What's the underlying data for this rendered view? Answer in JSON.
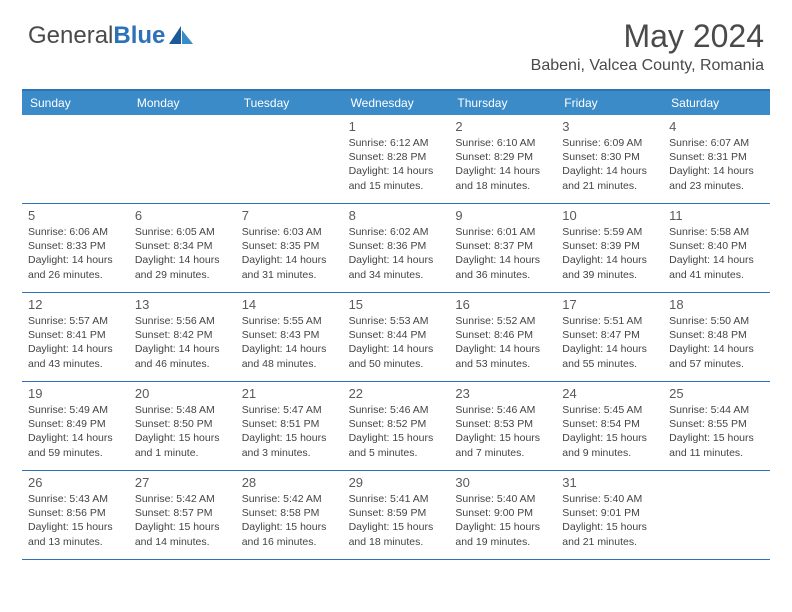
{
  "brand": {
    "text_a": "General",
    "text_b": "Blue",
    "logo_fill_dark": "#1a5a96",
    "logo_fill_light": "#3b8bc9"
  },
  "header": {
    "title": "May 2024",
    "location": "Babeni, Valcea County, Romania"
  },
  "style": {
    "header_bg": "#3b8bc9",
    "header_text": "#ffffff",
    "border_color": "#2d72b8",
    "body_text": "#444444",
    "daynum_color": "#5a5a5a",
    "title_color": "#4a4a4a",
    "title_fontsize": 32,
    "location_fontsize": 16,
    "weekday_fontsize": 12,
    "daynum_fontsize": 13,
    "info_fontsize": 10.5,
    "page_bg": "#ffffff"
  },
  "weekdays": [
    "Sunday",
    "Monday",
    "Tuesday",
    "Wednesday",
    "Thursday",
    "Friday",
    "Saturday"
  ],
  "weeks": [
    [
      {},
      {},
      {},
      {
        "d": "1",
        "sr": "6:12 AM",
        "ss": "8:28 PM",
        "dl": "14 hours and 15 minutes."
      },
      {
        "d": "2",
        "sr": "6:10 AM",
        "ss": "8:29 PM",
        "dl": "14 hours and 18 minutes."
      },
      {
        "d": "3",
        "sr": "6:09 AM",
        "ss": "8:30 PM",
        "dl": "14 hours and 21 minutes."
      },
      {
        "d": "4",
        "sr": "6:07 AM",
        "ss": "8:31 PM",
        "dl": "14 hours and 23 minutes."
      }
    ],
    [
      {
        "d": "5",
        "sr": "6:06 AM",
        "ss": "8:33 PM",
        "dl": "14 hours and 26 minutes."
      },
      {
        "d": "6",
        "sr": "6:05 AM",
        "ss": "8:34 PM",
        "dl": "14 hours and 29 minutes."
      },
      {
        "d": "7",
        "sr": "6:03 AM",
        "ss": "8:35 PM",
        "dl": "14 hours and 31 minutes."
      },
      {
        "d": "8",
        "sr": "6:02 AM",
        "ss": "8:36 PM",
        "dl": "14 hours and 34 minutes."
      },
      {
        "d": "9",
        "sr": "6:01 AM",
        "ss": "8:37 PM",
        "dl": "14 hours and 36 minutes."
      },
      {
        "d": "10",
        "sr": "5:59 AM",
        "ss": "8:39 PM",
        "dl": "14 hours and 39 minutes."
      },
      {
        "d": "11",
        "sr": "5:58 AM",
        "ss": "8:40 PM",
        "dl": "14 hours and 41 minutes."
      }
    ],
    [
      {
        "d": "12",
        "sr": "5:57 AM",
        "ss": "8:41 PM",
        "dl": "14 hours and 43 minutes."
      },
      {
        "d": "13",
        "sr": "5:56 AM",
        "ss": "8:42 PM",
        "dl": "14 hours and 46 minutes."
      },
      {
        "d": "14",
        "sr": "5:55 AM",
        "ss": "8:43 PM",
        "dl": "14 hours and 48 minutes."
      },
      {
        "d": "15",
        "sr": "5:53 AM",
        "ss": "8:44 PM",
        "dl": "14 hours and 50 minutes."
      },
      {
        "d": "16",
        "sr": "5:52 AM",
        "ss": "8:46 PM",
        "dl": "14 hours and 53 minutes."
      },
      {
        "d": "17",
        "sr": "5:51 AM",
        "ss": "8:47 PM",
        "dl": "14 hours and 55 minutes."
      },
      {
        "d": "18",
        "sr": "5:50 AM",
        "ss": "8:48 PM",
        "dl": "14 hours and 57 minutes."
      }
    ],
    [
      {
        "d": "19",
        "sr": "5:49 AM",
        "ss": "8:49 PM",
        "dl": "14 hours and 59 minutes."
      },
      {
        "d": "20",
        "sr": "5:48 AM",
        "ss": "8:50 PM",
        "dl": "15 hours and 1 minute."
      },
      {
        "d": "21",
        "sr": "5:47 AM",
        "ss": "8:51 PM",
        "dl": "15 hours and 3 minutes."
      },
      {
        "d": "22",
        "sr": "5:46 AM",
        "ss": "8:52 PM",
        "dl": "15 hours and 5 minutes."
      },
      {
        "d": "23",
        "sr": "5:46 AM",
        "ss": "8:53 PM",
        "dl": "15 hours and 7 minutes."
      },
      {
        "d": "24",
        "sr": "5:45 AM",
        "ss": "8:54 PM",
        "dl": "15 hours and 9 minutes."
      },
      {
        "d": "25",
        "sr": "5:44 AM",
        "ss": "8:55 PM",
        "dl": "15 hours and 11 minutes."
      }
    ],
    [
      {
        "d": "26",
        "sr": "5:43 AM",
        "ss": "8:56 PM",
        "dl": "15 hours and 13 minutes."
      },
      {
        "d": "27",
        "sr": "5:42 AM",
        "ss": "8:57 PM",
        "dl": "15 hours and 14 minutes."
      },
      {
        "d": "28",
        "sr": "5:42 AM",
        "ss": "8:58 PM",
        "dl": "15 hours and 16 minutes."
      },
      {
        "d": "29",
        "sr": "5:41 AM",
        "ss": "8:59 PM",
        "dl": "15 hours and 18 minutes."
      },
      {
        "d": "30",
        "sr": "5:40 AM",
        "ss": "9:00 PM",
        "dl": "15 hours and 19 minutes."
      },
      {
        "d": "31",
        "sr": "5:40 AM",
        "ss": "9:01 PM",
        "dl": "15 hours and 21 minutes."
      },
      {}
    ]
  ],
  "labels": {
    "sunrise": "Sunrise: ",
    "sunset": "Sunset: ",
    "daylight": "Daylight: "
  }
}
